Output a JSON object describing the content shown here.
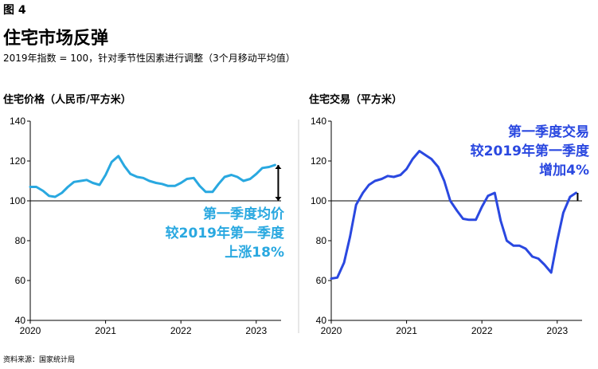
{
  "header": {
    "figure_label": "图 4",
    "title": "住宅市场反弹",
    "subtitle": "2019年指数 = 100，针对季节性因素进行调整（3个月移动平均值）",
    "source": "资料来源：国家统计局"
  },
  "colors": {
    "left_line": "#29a8e0",
    "right_line": "#2a48e0",
    "axis": "#000000",
    "annotation_left": "#29a8e0",
    "annotation_right": "#2a48e0"
  },
  "chart_data": [
    {
      "type": "line",
      "title": "住宅价格（人民币/平方米）",
      "x_ticks": [
        "2020",
        "2021",
        "2022",
        "2023"
      ],
      "y_ticks": [
        40,
        60,
        80,
        100,
        120,
        140
      ],
      "ylim": [
        40,
        140
      ],
      "xlim": [
        2020.0,
        2023.33
      ],
      "reference_line": 100,
      "series": [
        {
          "x": [
            2020.0,
            2020.08,
            2020.17,
            2020.25,
            2020.33,
            2020.42,
            2020.5,
            2020.58,
            2020.67,
            2020.75,
            2020.83,
            2020.92,
            2021.0,
            2021.08,
            2021.17,
            2021.25,
            2021.33,
            2021.42,
            2021.5,
            2021.58,
            2021.67,
            2021.75,
            2021.83,
            2021.92,
            2022.0,
            2022.08,
            2022.17,
            2022.25,
            2022.33,
            2022.42,
            2022.5,
            2022.58,
            2022.67,
            2022.75,
            2022.83,
            2022.92,
            2023.0,
            2023.08,
            2023.17,
            2023.25
          ],
          "y": [
            107,
            107,
            105,
            102.5,
            102,
            104,
            107,
            109.5,
            110,
            110.5,
            109,
            108,
            113,
            119.5,
            122.5,
            117.5,
            113.5,
            112,
            111.5,
            110,
            109,
            108.5,
            107.5,
            107.5,
            109,
            111,
            111.5,
            107.5,
            104.5,
            104.5,
            108.5,
            112,
            113,
            112,
            110,
            111,
            113.5,
            116.5,
            117,
            118
          ]
        }
      ],
      "annotation": [
        "第一季度均价",
        "较2019年第一季度",
        "上涨18%"
      ]
    },
    {
      "type": "line",
      "title": "住宅交易（平方米）",
      "x_ticks": [
        "2020",
        "2021",
        "2022",
        "2023"
      ],
      "y_ticks": [
        40,
        60,
        80,
        100,
        120,
        140
      ],
      "ylim": [
        40,
        140
      ],
      "xlim": [
        2020.0,
        2023.33
      ],
      "reference_line": 100,
      "series": [
        {
          "x": [
            2020.0,
            2020.08,
            2020.17,
            2020.25,
            2020.33,
            2020.42,
            2020.5,
            2020.58,
            2020.67,
            2020.75,
            2020.83,
            2020.92,
            2021.0,
            2021.08,
            2021.17,
            2021.25,
            2021.33,
            2021.42,
            2021.5,
            2021.58,
            2021.67,
            2021.75,
            2021.83,
            2021.92,
            2022.0,
            2022.08,
            2022.17,
            2022.25,
            2022.33,
            2022.42,
            2022.5,
            2022.58,
            2022.67,
            2022.75,
            2022.83,
            2022.92,
            2023.0,
            2023.08,
            2023.17,
            2023.25
          ],
          "y": [
            61,
            61.5,
            69,
            82,
            98,
            104,
            108,
            110,
            111,
            112.5,
            112,
            113,
            116,
            121,
            125,
            123,
            121,
            117,
            110,
            100,
            95,
            91,
            90.5,
            90.5,
            97,
            102.5,
            104,
            90,
            80,
            77.5,
            77.5,
            76,
            72,
            71,
            68,
            64,
            80,
            94,
            102,
            104
          ]
        }
      ],
      "annotation": [
        "第一季度交易",
        "较2019年第一季度",
        "增加4%"
      ]
    }
  ]
}
